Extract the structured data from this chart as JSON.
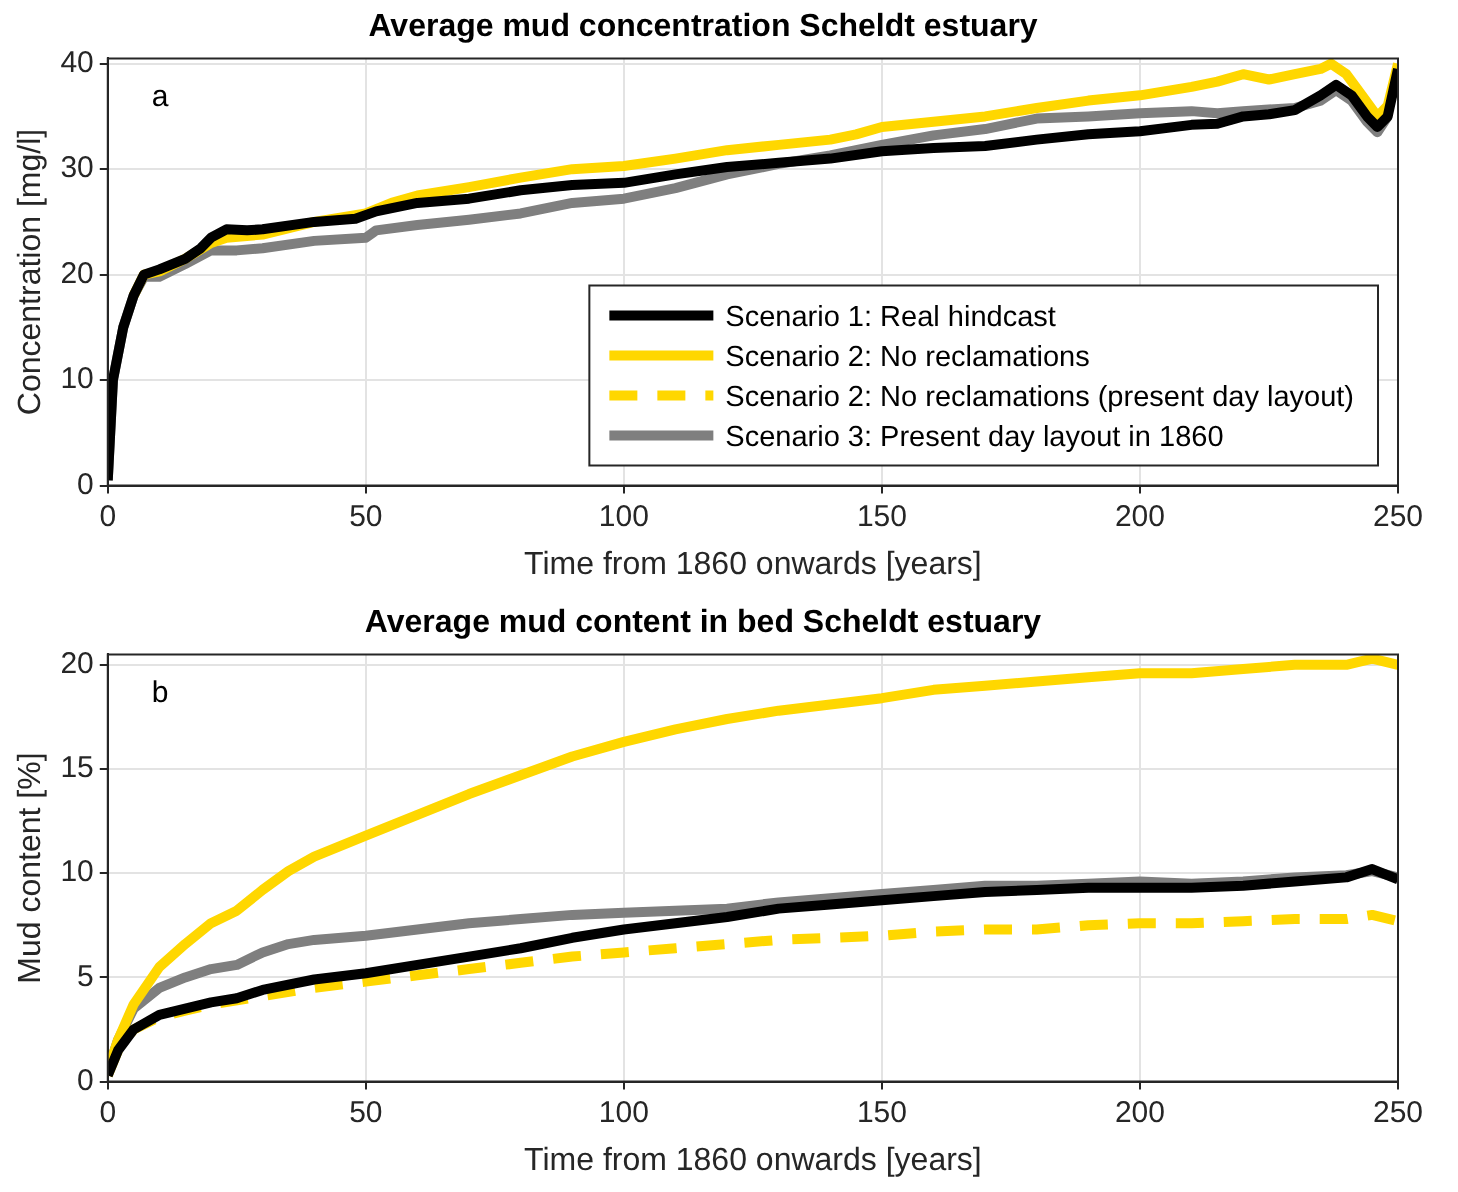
{
  "chart_data": [
    {
      "type": "line",
      "title": "Average mud concentration Scheldt estuary",
      "xlabel": "Time from 1860 onwards [years]",
      "ylabel": "Concentration [mg/l]",
      "annotations": [
        "a"
      ],
      "xlim": [
        0,
        250
      ],
      "xticks": [
        0,
        50,
        100,
        150,
        200,
        250
      ],
      "ylim": [
        0,
        40.5
      ],
      "yticks": [
        0,
        10,
        20,
        30,
        40
      ],
      "grid": true,
      "legend": "bottom right",
      "line_style": "solid",
      "marker": "none",
      "series": [
        {
          "name": "Scenario 1: Real hindcast",
          "color": "#000000",
          "x": [
            0,
            1,
            3,
            5,
            7,
            10,
            15,
            18,
            20,
            23,
            27,
            30,
            40,
            48,
            52,
            60,
            70,
            80,
            90,
            100,
            110,
            120,
            130,
            140,
            150,
            160,
            170,
            180,
            190,
            200,
            210,
            215,
            220,
            225,
            230,
            235,
            238,
            241,
            244,
            246,
            248,
            250
          ],
          "values": [
            0.5,
            10,
            15,
            18,
            20,
            20.5,
            21.5,
            22.5,
            23.5,
            24.3,
            24.2,
            24.3,
            25,
            25.3,
            26,
            26.8,
            27.2,
            28,
            28.5,
            28.7,
            29.5,
            30.2,
            30.6,
            31,
            31.7,
            32,
            32.2,
            32.8,
            33.3,
            33.6,
            34.2,
            34.3,
            35,
            35.2,
            35.6,
            37,
            38,
            37,
            35,
            34,
            35,
            39.5
          ]
        },
        {
          "name": "Scenario 2: No reclamations",
          "color": "#ffd700",
          "x": [
            5,
            7,
            10,
            15,
            20,
            23,
            30,
            40,
            50,
            55,
            60,
            70,
            80,
            90,
            100,
            110,
            120,
            130,
            140,
            145,
            150,
            160,
            170,
            180,
            190,
            200,
            210,
            215,
            220,
            225,
            230,
            235,
            237,
            240,
            243,
            246,
            248,
            250
          ],
          "values": [
            18,
            20,
            20.3,
            21.5,
            23,
            23.5,
            23.8,
            25,
            25.8,
            26.8,
            27.5,
            28.3,
            29.2,
            30,
            30.3,
            31,
            31.8,
            32.3,
            32.8,
            33.3,
            34,
            34.5,
            35,
            35.8,
            36.5,
            37,
            37.8,
            38.3,
            39,
            38.5,
            39,
            39.5,
            40,
            39,
            37,
            35,
            36,
            40
          ]
        },
        {
          "name": "Scenario 2: No reclamations (present day layout)",
          "color": "#ffd700",
          "line_style": "dashed"
        },
        {
          "name": "Scenario 3: Present day layout in 1860",
          "color": "#7f7f7f",
          "x": [
            0,
            1,
            3,
            5,
            7,
            10,
            15,
            20,
            25,
            30,
            40,
            50,
            52,
            60,
            70,
            80,
            90,
            100,
            110,
            120,
            130,
            140,
            150,
            160,
            170,
            180,
            190,
            200,
            210,
            215,
            220,
            230,
            235,
            238,
            241,
            244,
            246,
            248
          ],
          "values": [
            0.5,
            10,
            15,
            18,
            19.8,
            19.8,
            21,
            22.3,
            22.3,
            22.5,
            23.2,
            23.5,
            24.2,
            24.7,
            25.2,
            25.8,
            26.8,
            27.2,
            28.2,
            29.5,
            30.5,
            31.3,
            32.3,
            33.2,
            33.8,
            34.8,
            35,
            35.3,
            35.5,
            35.3,
            35.5,
            35.8,
            36.5,
            37.5,
            36.5,
            34.5,
            33.5,
            35
          ]
        }
      ]
    },
    {
      "type": "line",
      "title": "Average mud content in bed Scheldt estuary",
      "xlabel": "Time from 1860 onwards [years]",
      "ylabel": "Mud content [%]",
      "annotations": [
        "b"
      ],
      "xlim": [
        0,
        250
      ],
      "xticks": [
        0,
        50,
        100,
        150,
        200,
        250
      ],
      "ylim": [
        0,
        20.5
      ],
      "yticks": [
        0,
        5,
        10,
        15,
        20
      ],
      "grid": true,
      "line_style": "solid",
      "marker": "none",
      "series": [
        {
          "color": "#000000",
          "x": [
            0,
            2,
            5,
            10,
            15,
            20,
            25,
            30,
            40,
            50,
            60,
            70,
            80,
            90,
            100,
            110,
            120,
            130,
            140,
            150,
            160,
            170,
            180,
            190,
            200,
            210,
            220,
            230,
            240,
            245,
            250
          ],
          "values": [
            0.3,
            1.5,
            2.5,
            3.2,
            3.5,
            3.8,
            4,
            4.4,
            4.9,
            5.2,
            5.6,
            6,
            6.4,
            6.9,
            7.3,
            7.6,
            7.9,
            8.3,
            8.5,
            8.7,
            8.9,
            9.1,
            9.2,
            9.3,
            9.3,
            9.3,
            9.4,
            9.6,
            9.8,
            10.2,
            9.7
          ]
        },
        {
          "color": "#ffd700",
          "x": [
            0,
            2,
            5,
            10,
            15,
            20,
            25,
            30,
            35,
            40,
            50,
            60,
            70,
            80,
            90,
            100,
            110,
            120,
            130,
            140,
            150,
            160,
            170,
            180,
            190,
            200,
            210,
            220,
            230,
            240,
            245,
            250
          ],
          "values": [
            0.5,
            2,
            3.7,
            5.5,
            6.6,
            7.6,
            8.2,
            9.2,
            10.1,
            10.8,
            11.8,
            12.8,
            13.8,
            14.7,
            15.6,
            16.3,
            16.9,
            17.4,
            17.8,
            18.1,
            18.4,
            18.8,
            19,
            19.2,
            19.4,
            19.6,
            19.6,
            19.8,
            20,
            20,
            20.3,
            20
          ]
        },
        {
          "color": "#ffd700",
          "line_style": "dashed",
          "x": [
            0,
            2,
            5,
            10,
            15,
            20,
            30,
            40,
            50,
            60,
            70,
            80,
            90,
            100,
            110,
            120,
            130,
            140,
            150,
            160,
            170,
            180,
            190,
            200,
            210,
            220,
            230,
            240,
            245,
            250
          ],
          "values": [
            0.3,
            1.5,
            2.5,
            3.1,
            3.4,
            3.7,
            4.1,
            4.5,
            4.8,
            5.1,
            5.4,
            5.7,
            6,
            6.2,
            6.4,
            6.6,
            6.8,
            6.9,
            7,
            7.2,
            7.3,
            7.3,
            7.5,
            7.6,
            7.6,
            7.7,
            7.8,
            7.8,
            8,
            7.7
          ]
        },
        {
          "color": "#7f7f7f",
          "x": [
            0,
            2,
            5,
            10,
            15,
            20,
            25,
            30,
            35,
            40,
            50,
            60,
            70,
            80,
            90,
            100,
            110,
            120,
            130,
            140,
            150,
            160,
            170,
            180,
            190,
            200,
            210,
            220,
            230,
            240,
            245,
            250
          ],
          "values": [
            0.5,
            2,
            3.5,
            4.5,
            5,
            5.4,
            5.6,
            6.2,
            6.6,
            6.8,
            7,
            7.3,
            7.6,
            7.8,
            8,
            8.1,
            8.2,
            8.3,
            8.6,
            8.8,
            9,
            9.2,
            9.4,
            9.4,
            9.5,
            9.6,
            9.5,
            9.6,
            9.8,
            9.9,
            10.1,
            9.8
          ]
        }
      ]
    }
  ]
}
